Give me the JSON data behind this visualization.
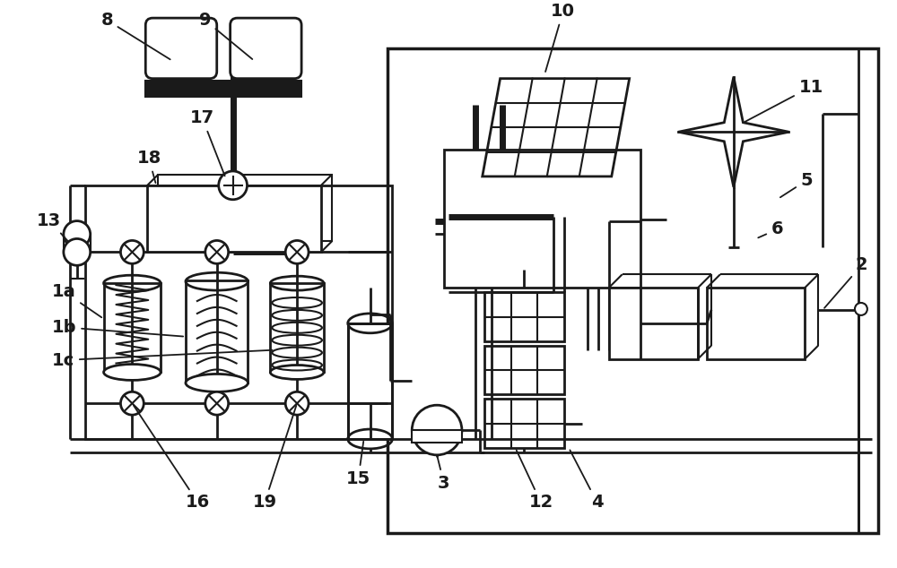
{
  "bg_color": "#ffffff",
  "line_color": "#1a1a1a",
  "fig_width": 10.0,
  "fig_height": 6.34,
  "lw_main": 2.0,
  "lw_thick": 5.0,
  "lw_thin": 1.5
}
